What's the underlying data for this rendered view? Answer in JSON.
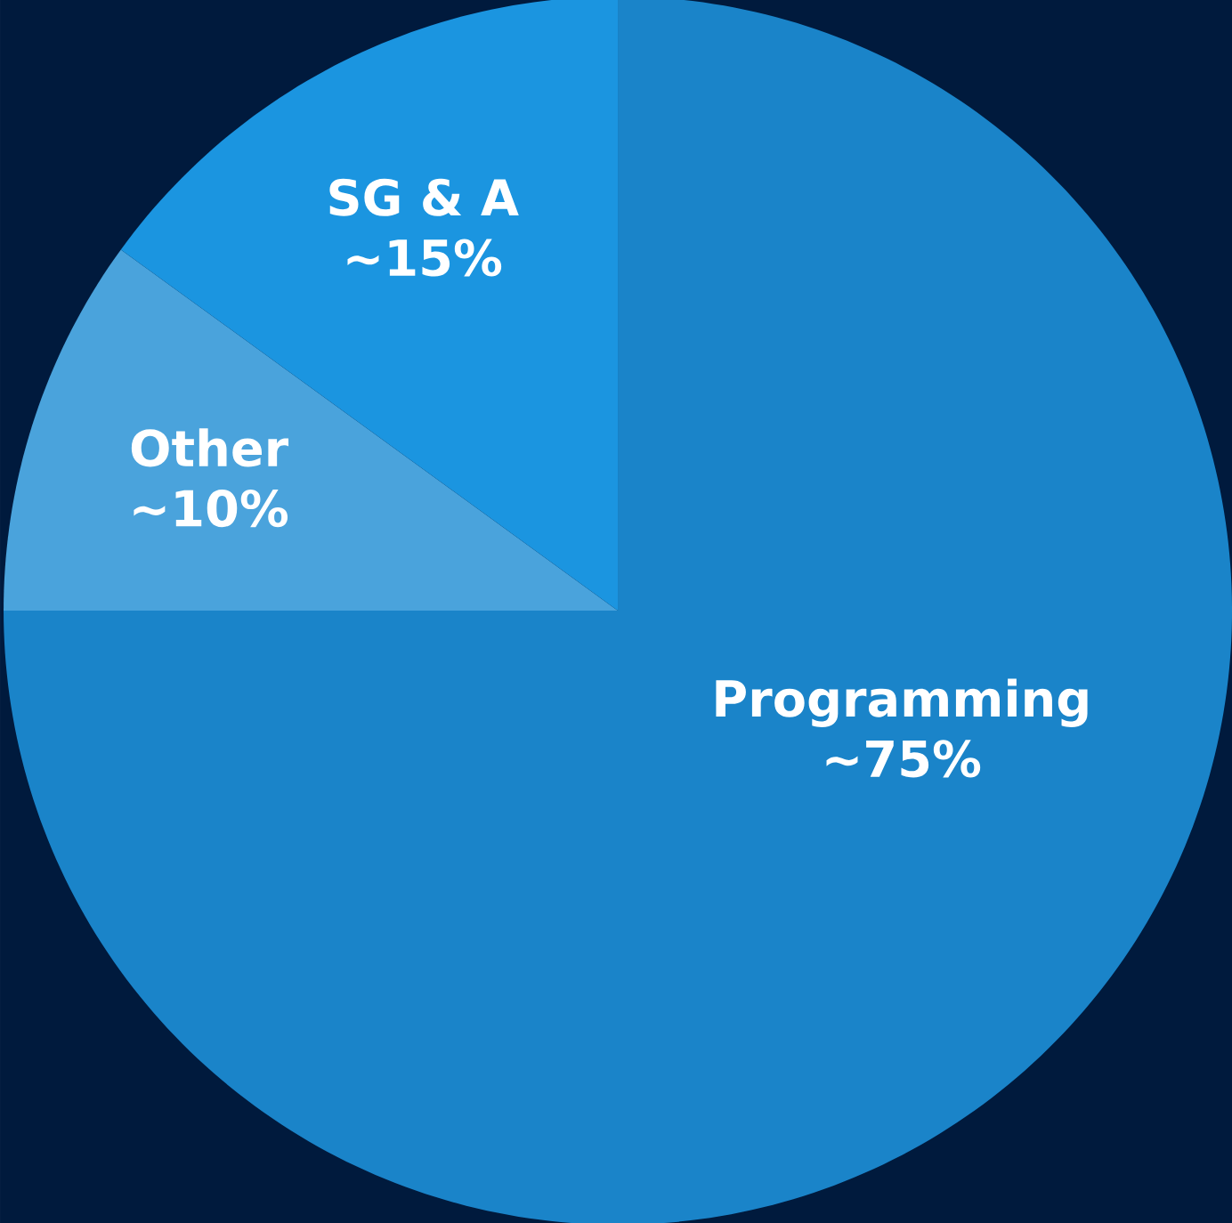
{
  "chart_data": {
    "type": "pie",
    "categories": [
      "Programming",
      "Other",
      "SG & A"
    ],
    "values": [
      75,
      10,
      15
    ],
    "value_labels": [
      "~75%",
      "~10%",
      "~15%"
    ],
    "colors": [
      "#1a84c9",
      "#4aa3dc",
      "#1b95e0"
    ]
  }
}
